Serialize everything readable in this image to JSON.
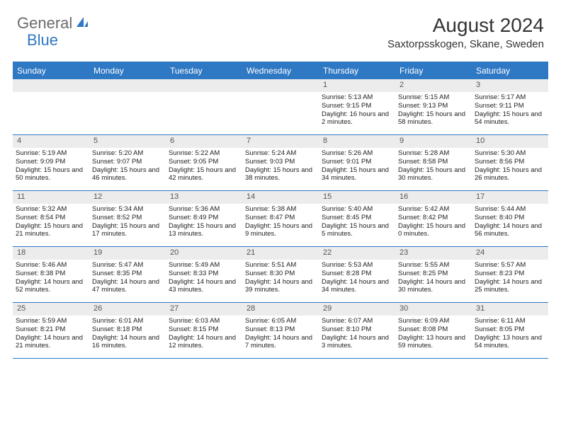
{
  "logo": {
    "general": "General",
    "blue": "Blue"
  },
  "title": "August 2024",
  "location": "Saxtorpsskogen, Skane, Sweden",
  "colors": {
    "accent": "#2f78c4",
    "day_bg": "#ececec",
    "text": "#222222",
    "logo_gray": "#6b6b6b"
  },
  "day_names": [
    "Sunday",
    "Monday",
    "Tuesday",
    "Wednesday",
    "Thursday",
    "Friday",
    "Saturday"
  ],
  "weeks": [
    [
      null,
      null,
      null,
      null,
      {
        "n": "1",
        "sr": "5:13 AM",
        "ss": "9:15 PM",
        "dl": "16 hours and 2 minutes."
      },
      {
        "n": "2",
        "sr": "5:15 AM",
        "ss": "9:13 PM",
        "dl": "15 hours and 58 minutes."
      },
      {
        "n": "3",
        "sr": "5:17 AM",
        "ss": "9:11 PM",
        "dl": "15 hours and 54 minutes."
      }
    ],
    [
      {
        "n": "4",
        "sr": "5:19 AM",
        "ss": "9:09 PM",
        "dl": "15 hours and 50 minutes."
      },
      {
        "n": "5",
        "sr": "5:20 AM",
        "ss": "9:07 PM",
        "dl": "15 hours and 46 minutes."
      },
      {
        "n": "6",
        "sr": "5:22 AM",
        "ss": "9:05 PM",
        "dl": "15 hours and 42 minutes."
      },
      {
        "n": "7",
        "sr": "5:24 AM",
        "ss": "9:03 PM",
        "dl": "15 hours and 38 minutes."
      },
      {
        "n": "8",
        "sr": "5:26 AM",
        "ss": "9:01 PM",
        "dl": "15 hours and 34 minutes."
      },
      {
        "n": "9",
        "sr": "5:28 AM",
        "ss": "8:58 PM",
        "dl": "15 hours and 30 minutes."
      },
      {
        "n": "10",
        "sr": "5:30 AM",
        "ss": "8:56 PM",
        "dl": "15 hours and 26 minutes."
      }
    ],
    [
      {
        "n": "11",
        "sr": "5:32 AM",
        "ss": "8:54 PM",
        "dl": "15 hours and 21 minutes."
      },
      {
        "n": "12",
        "sr": "5:34 AM",
        "ss": "8:52 PM",
        "dl": "15 hours and 17 minutes."
      },
      {
        "n": "13",
        "sr": "5:36 AM",
        "ss": "8:49 PM",
        "dl": "15 hours and 13 minutes."
      },
      {
        "n": "14",
        "sr": "5:38 AM",
        "ss": "8:47 PM",
        "dl": "15 hours and 9 minutes."
      },
      {
        "n": "15",
        "sr": "5:40 AM",
        "ss": "8:45 PM",
        "dl": "15 hours and 5 minutes."
      },
      {
        "n": "16",
        "sr": "5:42 AM",
        "ss": "8:42 PM",
        "dl": "15 hours and 0 minutes."
      },
      {
        "n": "17",
        "sr": "5:44 AM",
        "ss": "8:40 PM",
        "dl": "14 hours and 56 minutes."
      }
    ],
    [
      {
        "n": "18",
        "sr": "5:46 AM",
        "ss": "8:38 PM",
        "dl": "14 hours and 52 minutes."
      },
      {
        "n": "19",
        "sr": "5:47 AM",
        "ss": "8:35 PM",
        "dl": "14 hours and 47 minutes."
      },
      {
        "n": "20",
        "sr": "5:49 AM",
        "ss": "8:33 PM",
        "dl": "14 hours and 43 minutes."
      },
      {
        "n": "21",
        "sr": "5:51 AM",
        "ss": "8:30 PM",
        "dl": "14 hours and 39 minutes."
      },
      {
        "n": "22",
        "sr": "5:53 AM",
        "ss": "8:28 PM",
        "dl": "14 hours and 34 minutes."
      },
      {
        "n": "23",
        "sr": "5:55 AM",
        "ss": "8:25 PM",
        "dl": "14 hours and 30 minutes."
      },
      {
        "n": "24",
        "sr": "5:57 AM",
        "ss": "8:23 PM",
        "dl": "14 hours and 25 minutes."
      }
    ],
    [
      {
        "n": "25",
        "sr": "5:59 AM",
        "ss": "8:21 PM",
        "dl": "14 hours and 21 minutes."
      },
      {
        "n": "26",
        "sr": "6:01 AM",
        "ss": "8:18 PM",
        "dl": "14 hours and 16 minutes."
      },
      {
        "n": "27",
        "sr": "6:03 AM",
        "ss": "8:15 PM",
        "dl": "14 hours and 12 minutes."
      },
      {
        "n": "28",
        "sr": "6:05 AM",
        "ss": "8:13 PM",
        "dl": "14 hours and 7 minutes."
      },
      {
        "n": "29",
        "sr": "6:07 AM",
        "ss": "8:10 PM",
        "dl": "14 hours and 3 minutes."
      },
      {
        "n": "30",
        "sr": "6:09 AM",
        "ss": "8:08 PM",
        "dl": "13 hours and 59 minutes."
      },
      {
        "n": "31",
        "sr": "6:11 AM",
        "ss": "8:05 PM",
        "dl": "13 hours and 54 minutes."
      }
    ]
  ],
  "labels": {
    "sunrise": "Sunrise:",
    "sunset": "Sunset:",
    "daylight": "Daylight:"
  }
}
